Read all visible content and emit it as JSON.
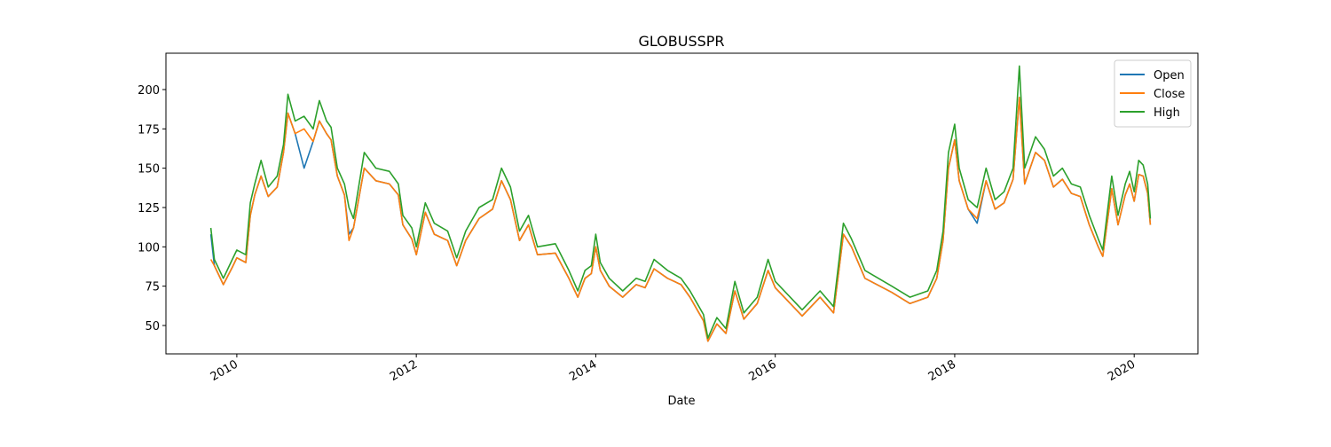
{
  "chart_data": {
    "type": "line",
    "title": "GLOBUSSPR",
    "x_label": "Date",
    "x": [
      2009.71,
      2009.75,
      2009.85,
      2009.95,
      2010.0,
      2010.1,
      2010.15,
      2010.2,
      2010.27,
      2010.35,
      2010.45,
      2010.52,
      2010.57,
      2010.65,
      2010.75,
      2010.85,
      2010.92,
      2011.0,
      2011.05,
      2011.12,
      2011.2,
      2011.25,
      2011.3,
      2011.42,
      2011.55,
      2011.7,
      2011.8,
      2011.85,
      2011.95,
      2012.0,
      2012.1,
      2012.2,
      2012.35,
      2012.45,
      2012.55,
      2012.7,
      2012.85,
      2012.95,
      2013.05,
      2013.15,
      2013.25,
      2013.35,
      2013.55,
      2013.7,
      2013.8,
      2013.88,
      2013.95,
      2014.0,
      2014.05,
      2014.15,
      2014.3,
      2014.45,
      2014.55,
      2014.65,
      2014.8,
      2014.95,
      2015.05,
      2015.15,
      2015.2,
      2015.25,
      2015.35,
      2015.45,
      2015.55,
      2015.65,
      2015.8,
      2015.92,
      2016.0,
      2016.3,
      2016.5,
      2016.65,
      2016.76,
      2016.85,
      2017.0,
      2017.3,
      2017.5,
      2017.7,
      2017.8,
      2017.87,
      2017.93,
      2018.0,
      2018.05,
      2018.15,
      2018.25,
      2018.35,
      2018.45,
      2018.55,
      2018.65,
      2018.72,
      2018.78,
      2018.9,
      2019.0,
      2019.1,
      2019.2,
      2019.3,
      2019.4,
      2019.5,
      2019.6,
      2019.65,
      2019.75,
      2019.82,
      2019.9,
      2019.95,
      2020.0,
      2020.05,
      2020.1,
      2020.15,
      2020.18
    ],
    "series": [
      {
        "name": "Open",
        "color": "#1f77b4",
        "values": [
          108,
          88,
          76,
          87,
          93,
          90,
          120,
          133,
          145,
          132,
          138,
          160,
          185,
          172,
          150,
          167,
          180,
          172,
          168,
          145,
          133,
          108,
          112,
          150,
          142,
          140,
          133,
          114,
          105,
          95,
          122,
          108,
          104,
          88,
          104,
          118,
          124,
          142,
          130,
          104,
          114,
          95,
          96,
          80,
          68,
          80,
          83,
          100,
          85,
          75,
          68,
          76,
          74,
          86,
          80,
          76,
          68,
          58,
          53,
          40,
          51,
          45,
          72,
          54,
          64,
          85,
          74,
          56,
          68,
          58,
          108,
          100,
          80,
          71,
          64,
          68,
          80,
          104,
          150,
          168,
          142,
          124,
          115,
          142,
          124,
          128,
          143,
          195,
          140,
          160,
          155,
          138,
          143,
          134,
          132,
          114,
          100,
          94,
          137,
          114,
          133,
          140,
          129,
          146,
          145,
          134,
          114
        ]
      },
      {
        "name": "Close",
        "color": "#ff7f0e",
        "values": [
          92,
          88,
          76,
          87,
          93,
          90,
          120,
          133,
          145,
          132,
          138,
          160,
          185,
          172,
          175,
          167,
          180,
          172,
          168,
          145,
          133,
          104,
          112,
          150,
          142,
          140,
          133,
          114,
          105,
          95,
          122,
          108,
          104,
          88,
          104,
          118,
          124,
          142,
          130,
          104,
          114,
          95,
          96,
          80,
          68,
          80,
          83,
          100,
          85,
          75,
          68,
          76,
          74,
          86,
          80,
          76,
          68,
          58,
          53,
          40,
          51,
          45,
          72,
          54,
          64,
          85,
          74,
          56,
          68,
          58,
          108,
          100,
          80,
          71,
          64,
          68,
          80,
          104,
          150,
          168,
          142,
          124,
          118,
          142,
          124,
          128,
          143,
          195,
          140,
          160,
          155,
          138,
          143,
          134,
          132,
          114,
          100,
          94,
          137,
          114,
          133,
          140,
          129,
          146,
          145,
          134,
          114
        ]
      },
      {
        "name": "High",
        "color": "#2ca02c",
        "values": [
          112,
          92,
          80,
          92,
          98,
          95,
          128,
          140,
          155,
          138,
          145,
          165,
          197,
          180,
          183,
          175,
          193,
          180,
          176,
          150,
          140,
          125,
          118,
          160,
          150,
          148,
          140,
          120,
          112,
          100,
          128,
          115,
          110,
          93,
          110,
          125,
          130,
          150,
          138,
          110,
          120,
          100,
          102,
          85,
          72,
          85,
          88,
          108,
          90,
          80,
          72,
          80,
          78,
          92,
          85,
          80,
          72,
          62,
          57,
          42,
          55,
          48,
          78,
          58,
          68,
          92,
          78,
          60,
          72,
          62,
          115,
          105,
          85,
          75,
          68,
          72,
          85,
          110,
          160,
          178,
          150,
          130,
          125,
          150,
          130,
          135,
          150,
          215,
          150,
          170,
          162,
          145,
          150,
          140,
          138,
          120,
          105,
          98,
          145,
          120,
          140,
          148,
          135,
          155,
          152,
          140,
          118
        ]
      }
    ],
    "xlim": [
      2009.21,
      2020.71
    ],
    "xticks": [
      2010,
      2012,
      2014,
      2016,
      2018,
      2020
    ],
    "ylim": [
      31.95,
      223.1
    ],
    "yticks": [
      50,
      75,
      100,
      125,
      150,
      175,
      200
    ],
    "grid": false,
    "legend": "upper right"
  }
}
